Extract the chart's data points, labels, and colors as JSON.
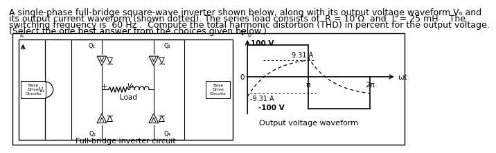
{
  "title_line1": "A single-phase full-bridge square-wave inverter shown below, along with its output voltage waveform V₀ and",
  "title_line2": "its output current waveform (shown dotted). The series load consists of  R = 10 Ω  and  L = 25 mH .  The",
  "title_line3": "switching frequency is  60 Hz .  Compute the total harmonic distortion (THD) in percent for the output voltage.",
  "title_line4": "(Select the one best answer from the choices given below.)",
  "bg_color": "#ffffff",
  "box_color": "#000000",
  "text_color": "#000000",
  "font_size_body": 9.0,
  "circuit_label": "Full-bridge inverter circuit",
  "waveform_label": "Output voltage waveform",
  "v_label": "100 V",
  "neg_v_label": "-100 V",
  "i_pos_label": "9.31 A",
  "i_neg_label": "-9.31 A",
  "wt_label": "ωt",
  "pi_label": "π",
  "two_pi_label": "2π",
  "vs_label": "Vₛ",
  "is_label": "iₛ",
  "vo_label": "V₀",
  "zero_label": "0"
}
